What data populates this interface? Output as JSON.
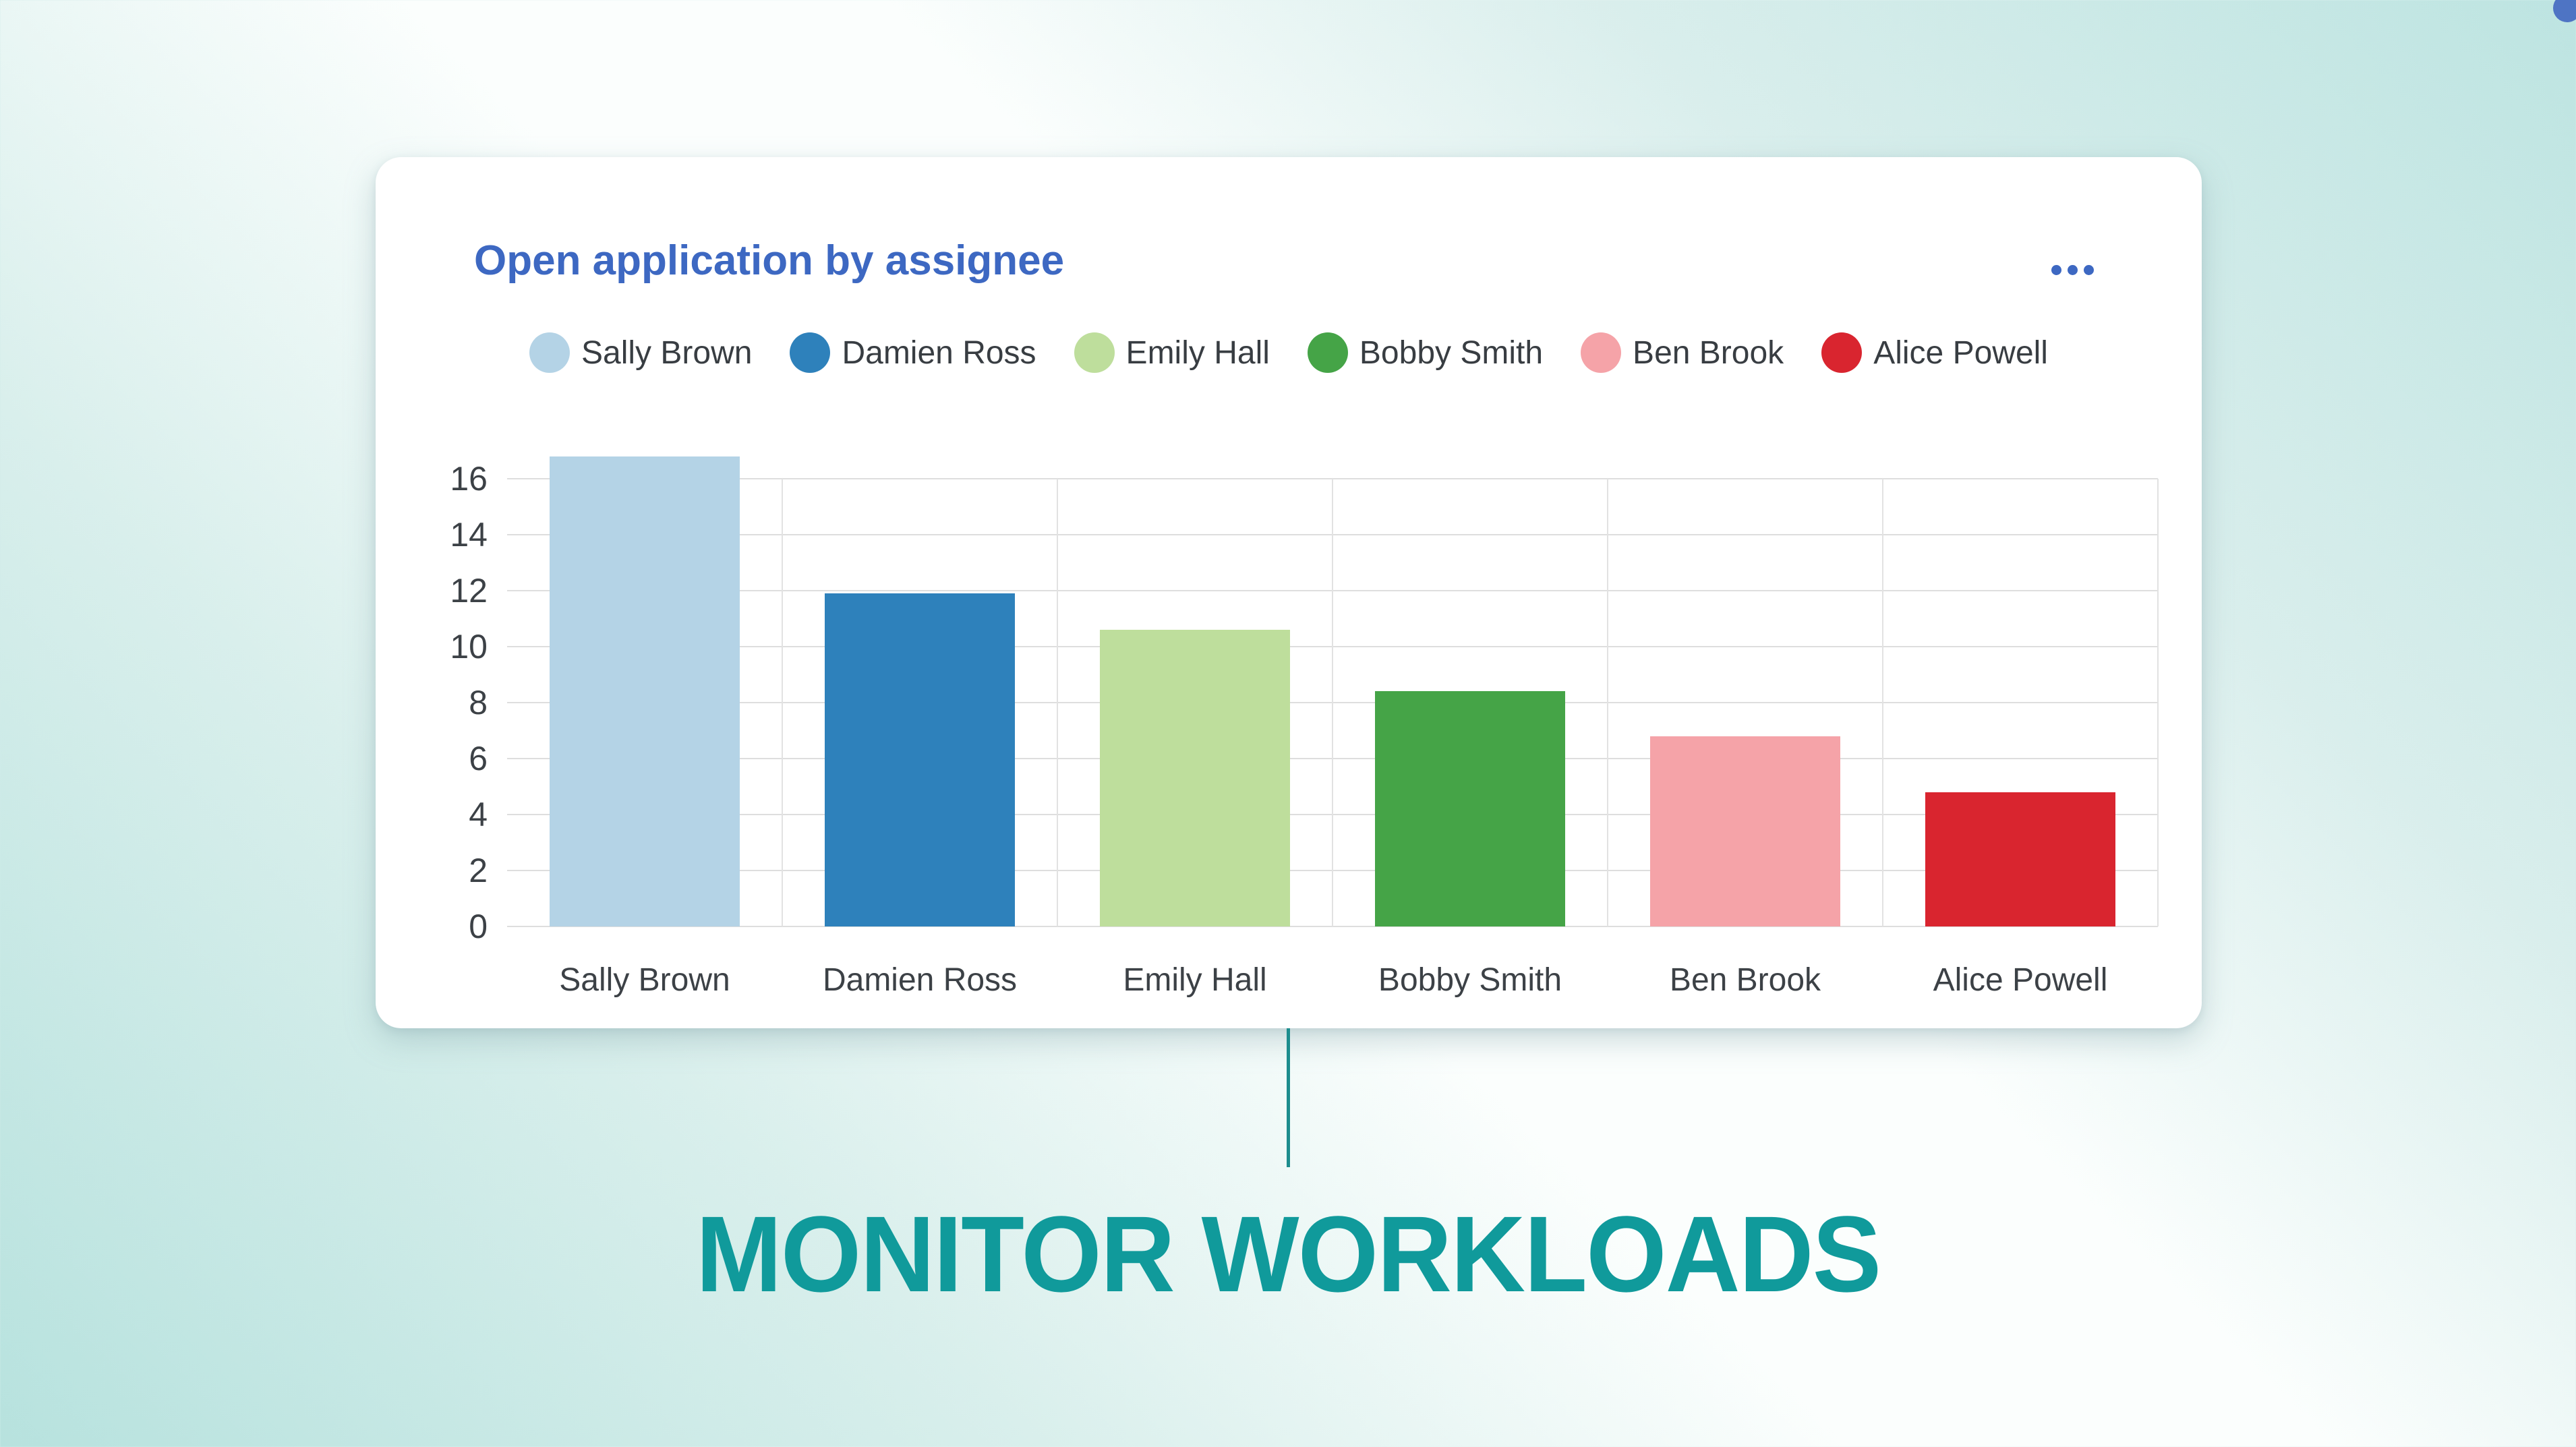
{
  "page": {
    "headline": "MONITOR WORKLOADS",
    "background_teal": "#bde4e1",
    "headline_color": "#109a9b",
    "connector_color": "#1d8d8e",
    "corner_dot_color": "#4e74c4"
  },
  "card": {
    "title": "Open application by assignee",
    "title_color": "#3d68c2",
    "menu_icon": "ellipsis",
    "legend": [
      {
        "label": "Sally Brown",
        "color": "#b4d3e6"
      },
      {
        "label": "Damien Ross",
        "color": "#2e81bb"
      },
      {
        "label": "Emily Hall",
        "color": "#bede9c"
      },
      {
        "label": "Bobby Smith",
        "color": "#45a447"
      },
      {
        "label": "Ben Brook",
        "color": "#f5a3a8"
      },
      {
        "label": "Alice Powell",
        "color": "#d9252f"
      }
    ]
  },
  "chart_data": {
    "type": "bar",
    "title": "Open application by assignee",
    "categories": [
      "Sally Brown",
      "Damien Ross",
      "Emily Hall",
      "Bobby Smith",
      "Ben Brook",
      "Alice Powell"
    ],
    "values": [
      16.8,
      11.9,
      10.6,
      8.4,
      6.8,
      4.8
    ],
    "bar_colors": [
      "#b4d3e6",
      "#2e81bb",
      "#bede9c",
      "#45a447",
      "#f5a3a8",
      "#d9252f"
    ],
    "xlabel": "",
    "ylabel": "",
    "ylim": [
      0,
      17
    ],
    "yticks": [
      0,
      2,
      4,
      6,
      8,
      10,
      12,
      14,
      16
    ],
    "grid": true,
    "gridline_color": "#dedede",
    "legend_position": "top",
    "tick_label_color": "#3c4146"
  }
}
